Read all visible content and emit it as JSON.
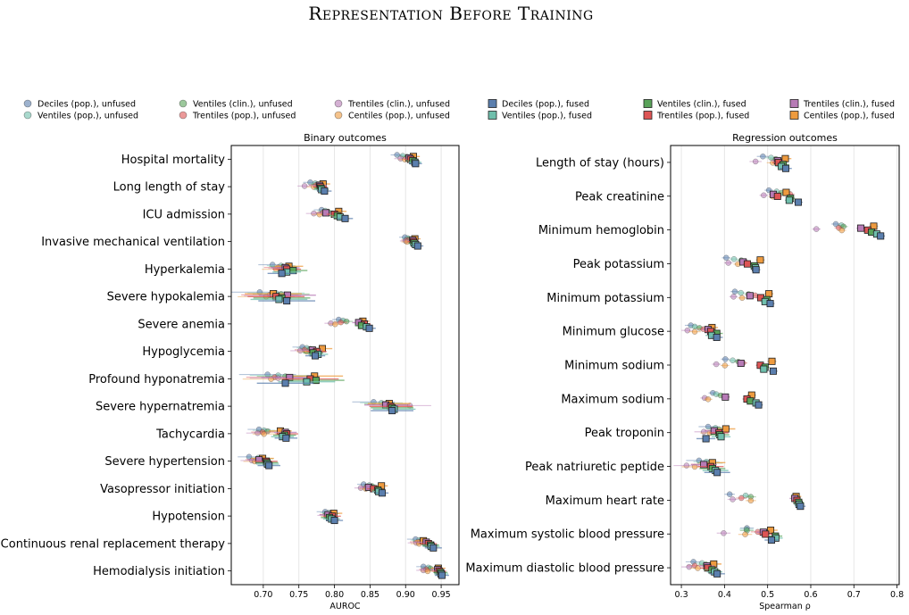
{
  "chart_data": {
    "title": "Representation Before Training",
    "legend": [
      {
        "name": "Deciles (pop.), unfused",
        "color": "#5b7fae",
        "shape": "circle"
      },
      {
        "name": "Ventiles (pop.), unfused",
        "color": "#6fbfac",
        "shape": "circle"
      },
      {
        "name": "Ventiles (clin.), unfused",
        "color": "#5aa35a",
        "shape": "circle"
      },
      {
        "name": "Trentiles (pop.), unfused",
        "color": "#dd5555",
        "shape": "circle"
      },
      {
        "name": "Trentiles (clin.), unfused",
        "color": "#b77bb6",
        "shape": "circle"
      },
      {
        "name": "Centiles (pop.), unfused",
        "color": "#ee9b3f",
        "shape": "circle"
      },
      {
        "name": "Deciles (pop.), fused",
        "color": "#5b7fae",
        "shape": "square"
      },
      {
        "name": "Ventiles (pop.), fused",
        "color": "#6fbfac",
        "shape": "square"
      },
      {
        "name": "Ventiles (clin.), fused",
        "color": "#5aa35a",
        "shape": "square"
      },
      {
        "name": "Trentiles (pop.), fused",
        "color": "#dd5555",
        "shape": "square"
      },
      {
        "name": "Trentiles (clin.), fused",
        "color": "#b77bb6",
        "shape": "square"
      },
      {
        "name": "Centiles (pop.), fused",
        "color": "#ee9b3f",
        "shape": "square"
      }
    ],
    "series_order": [
      "Deciles (pop.)",
      "Ventiles (pop.)",
      "Ventiles (clin.)",
      "Trentiles (pop.)",
      "Trentiles (clin.)",
      "Centiles (pop.)"
    ],
    "panels": [
      {
        "type": "scatter",
        "title": "Binary outcomes",
        "xlabel": "AUROC",
        "xlim": [
          0.655,
          0.975
        ],
        "xticks": [
          0.7,
          0.75,
          0.8,
          0.85,
          0.9,
          0.95
        ],
        "xtick_labels": [
          "0.70",
          "0.75",
          "0.80",
          "0.85",
          "0.90",
          "0.95"
        ],
        "grid": "vertical",
        "categories": [
          "Hospital mortality",
          "Long length of stay",
          "ICU admission",
          "Invasive mechanical ventilation",
          "Hyperkalemia",
          "Severe hypokalemia",
          "Severe anemia",
          "Hypoglycemia",
          "Profound hyponatremia",
          "Severe hypernatremia",
          "Tachycardia",
          "Severe hypertension",
          "Vasopressor initiation",
          "Hypotension",
          "Continuous renal replacement therapy",
          "Hemodialysis initiation"
        ],
        "unfused": [
          [
            0.888,
            0.896,
            0.902,
            0.905,
            0.893,
            0.899
          ],
          [
            0.766,
            0.773,
            0.777,
            0.774,
            0.758,
            0.771
          ],
          [
            0.782,
            0.787,
            0.791,
            0.784,
            0.771,
            0.779
          ],
          [
            0.899,
            0.903,
            0.905,
            0.902,
            0.9,
            0.902
          ],
          [
            0.713,
            0.725,
            0.728,
            0.721,
            0.727,
            0.718
          ],
          [
            0.695,
            0.718,
            0.725,
            0.709,
            0.713,
            0.704
          ],
          [
            0.806,
            0.812,
            0.817,
            0.809,
            0.795,
            0.801
          ],
          [
            0.755,
            0.761,
            0.766,
            0.758,
            0.752,
            0.761
          ],
          [
            0.706,
            0.721,
            0.731,
            0.716,
            0.721,
            0.711
          ],
          [
            0.855,
            0.866,
            0.872,
            0.876,
            0.906,
            0.881
          ],
          [
            0.694,
            0.701,
            0.706,
            0.699,
            0.692,
            0.701
          ],
          [
            0.68,
            0.693,
            0.698,
            0.691,
            0.684,
            0.688
          ],
          [
            0.841,
            0.849,
            0.853,
            0.845,
            0.837,
            0.844
          ],
          [
            0.787,
            0.792,
            0.795,
            0.791,
            0.788,
            0.793
          ],
          [
            0.914,
            0.919,
            0.922,
            0.918,
            0.915,
            0.919
          ],
          [
            0.925,
            0.932,
            0.935,
            0.929,
            0.925,
            0.931
          ]
        ],
        "fused": [
          [
            0.914,
            0.913,
            0.91,
            0.907,
            0.905,
            0.911
          ],
          [
            0.786,
            0.782,
            0.781,
            0.78,
            0.779,
            0.784
          ],
          [
            0.815,
            0.808,
            0.804,
            0.8,
            0.788,
            0.806
          ],
          [
            0.917,
            0.914,
            0.912,
            0.911,
            0.91,
            0.913
          ],
          [
            0.726,
            0.733,
            0.742,
            0.733,
            0.731,
            0.736
          ],
          [
            0.733,
            0.722,
            0.726,
            0.718,
            0.734,
            0.714
          ],
          [
            0.849,
            0.845,
            0.838,
            0.842,
            0.834,
            0.84
          ],
          [
            0.773,
            0.777,
            0.77,
            0.775,
            0.769,
            0.783
          ],
          [
            0.731,
            0.761,
            0.774,
            0.766,
            0.737,
            0.772
          ],
          [
            0.881,
            0.884,
            0.881,
            0.879,
            0.872,
            0.877
          ],
          [
            0.732,
            0.727,
            0.73,
            0.733,
            0.731,
            0.724
          ],
          [
            0.708,
            0.706,
            0.705,
            0.704,
            0.694,
            0.699
          ],
          [
            0.867,
            0.862,
            0.861,
            0.855,
            0.848,
            0.866
          ],
          [
            0.8,
            0.796,
            0.793,
            0.797,
            0.791,
            0.799
          ],
          [
            0.939,
            0.936,
            0.935,
            0.932,
            0.929,
            0.925
          ],
          [
            0.951,
            0.95,
            0.949,
            0.947,
            0.945,
            0.946
          ]
        ],
        "error_halfwidth": [
          0.009,
          0.01,
          0.011,
          0.008,
          0.02,
          0.04,
          0.009,
          0.014,
          0.04,
          0.03,
          0.016,
          0.016,
          0.009,
          0.012,
          0.012,
          0.01
        ]
      },
      {
        "type": "scatter",
        "title": "Regression outcomes",
        "xlabel": "Spearman ρ",
        "xlim": [
          0.275,
          0.805
        ],
        "xticks": [
          0.3,
          0.4,
          0.5,
          0.6,
          0.7,
          0.8
        ],
        "xtick_labels": [
          "0.3",
          "0.4",
          "0.5",
          "0.6",
          "0.7",
          "0.8"
        ],
        "grid": "vertical",
        "categories": [
          "Length of stay (hours)",
          "Peak creatinine",
          "Minimum hemoglobin",
          "Peak potassium",
          "Minimum potassium",
          "Minimum glucose",
          "Minimum sodium",
          "Maximum sodium",
          "Peak troponin",
          "Peak natriuretic peptide",
          "Maximum heart rate",
          "Maximum systolic blood pressure",
          "Maximum diastolic blood pressure"
        ],
        "unfused": [
          [
            0.489,
            0.508,
            0.519,
            0.531,
            0.472,
            0.512
          ],
          [
            0.503,
            0.521,
            0.532,
            0.552,
            0.491,
            0.512
          ],
          [
            0.658,
            0.671,
            0.676,
            0.665,
            0.613,
            0.672
          ],
          [
            0.404,
            0.422,
            0.439,
            0.448,
            0.409,
            0.431
          ],
          [
            0.424,
            0.438,
            0.456,
            0.471,
            0.421,
            0.441
          ],
          [
            0.322,
            0.331,
            0.342,
            0.351,
            0.314,
            0.331
          ],
          [
            0.402,
            0.419,
            0.432,
            0.443,
            0.381,
            0.401
          ],
          [
            0.373,
            0.381,
            0.391,
            0.402,
            0.354,
            0.362
          ],
          [
            0.362,
            0.379,
            0.387,
            0.376,
            0.352,
            0.366
          ],
          [
            0.341,
            0.358,
            0.366,
            0.352,
            0.312,
            0.331
          ],
          [
            0.412,
            0.449,
            0.461,
            0.439,
            0.419,
            0.461
          ],
          [
            0.452,
            0.451,
            0.452,
            0.477,
            0.398,
            0.448
          ],
          [
            0.328,
            0.348,
            0.357,
            0.331,
            0.318,
            0.338
          ]
        ],
        "fused": [
          [
            0.542,
            0.532,
            0.536,
            0.525,
            0.523,
            0.541
          ],
          [
            0.571,
            0.55,
            0.553,
            0.523,
            0.513,
            0.543
          ],
          [
            0.762,
            0.753,
            0.741,
            0.732,
            0.716,
            0.746
          ],
          [
            0.473,
            0.472,
            0.469,
            0.453,
            0.443,
            0.483
          ],
          [
            0.506,
            0.494,
            0.498,
            0.484,
            0.459,
            0.503
          ],
          [
            0.382,
            0.37,
            0.382,
            0.368,
            0.362,
            0.371
          ],
          [
            0.513,
            0.491,
            0.494,
            0.483,
            0.438,
            0.51
          ],
          [
            0.479,
            0.473,
            0.46,
            0.452,
            0.402,
            0.463
          ],
          [
            0.357,
            0.392,
            0.389,
            0.387,
            0.376,
            0.403
          ],
          [
            0.383,
            0.379,
            0.372,
            0.368,
            0.352,
            0.372
          ],
          [
            0.576,
            0.573,
            0.572,
            0.568,
            0.563,
            0.566
          ],
          [
            0.509,
            0.519,
            0.518,
            0.495,
            0.49,
            0.507
          ],
          [
            0.383,
            0.377,
            0.371,
            0.361,
            0.359,
            0.375
          ]
        ],
        "error_halfwidth": [
          0.014,
          0.01,
          0.01,
          0.01,
          0.01,
          0.014,
          0.01,
          0.01,
          0.022,
          0.03,
          0.012,
          0.016,
          0.018
        ]
      }
    ]
  }
}
